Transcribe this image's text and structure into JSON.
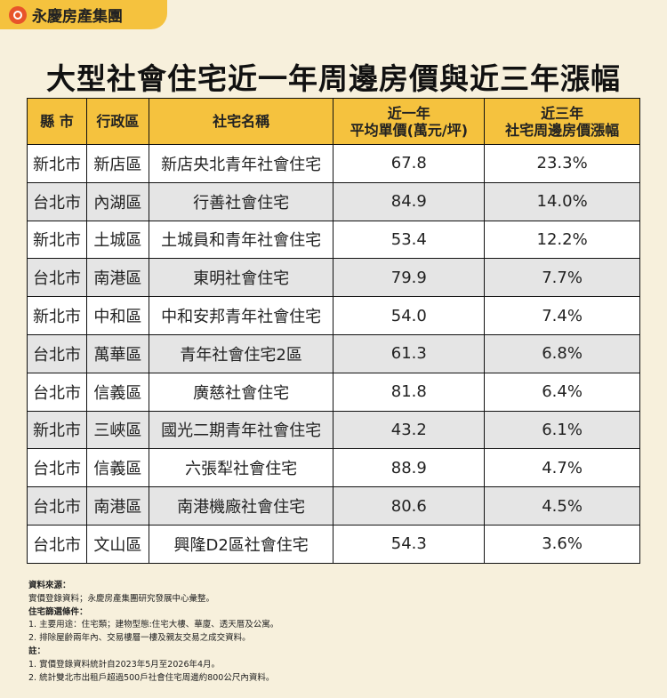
{
  "brand": "永慶房產集團",
  "title": "大型社會住宅近一年周邊房價與近三年漲幅",
  "table": {
    "columns": [
      [
        "縣 市"
      ],
      [
        "行政區"
      ],
      [
        "社宅名稱"
      ],
      [
        "近一年",
        "平均單價(萬元/坪)"
      ],
      [
        "近三年",
        "社宅周邊房價漲幅"
      ]
    ],
    "rows": [
      [
        "新北市",
        "新店區",
        "新店央北青年社會住宅",
        "67.8",
        "23.3%"
      ],
      [
        "台北市",
        "內湖區",
        "行善社會住宅",
        "84.9",
        "14.0%"
      ],
      [
        "新北市",
        "土城區",
        "土城員和青年社會住宅",
        "53.4",
        "12.2%"
      ],
      [
        "台北市",
        "南港區",
        "東明社會住宅",
        "79.9",
        "7.7%"
      ],
      [
        "新北市",
        "中和區",
        "中和安邦青年社會住宅",
        "54.0",
        "7.4%"
      ],
      [
        "台北市",
        "萬華區",
        "青年社會住宅2區",
        "61.3",
        "6.8%"
      ],
      [
        "台北市",
        "信義區",
        "廣慈社會住宅",
        "81.8",
        "6.4%"
      ],
      [
        "新北市",
        "三峽區",
        "國光二期青年社會住宅",
        "43.2",
        "6.1%"
      ],
      [
        "台北市",
        "信義區",
        "六張犁社會住宅",
        "88.9",
        "4.7%"
      ],
      [
        "台北市",
        "南港區",
        "南港機廠社會住宅",
        "80.6",
        "4.5%"
      ],
      [
        "台北市",
        "文山區",
        "興隆D2區社會住宅",
        "54.3",
        "3.6%"
      ]
    ]
  },
  "notes": [
    {
      "heading": "資料來源：",
      "lines": [
        "實價登錄資料；永慶房產集團研究發展中心彙整。"
      ]
    },
    {
      "heading": "住宅篩選條件：",
      "lines": [
        "1. 主要用途：住宅類；建物型態:住宅大樓、華廈、透天厝及公寓。",
        "2. 排除屋齡兩年內、交易樓層一樓及親友交易之成交資料。"
      ]
    },
    {
      "heading": "註：",
      "lines": [
        "1. 實價登錄資料統計自2023年5月至2026年4月。",
        "2. 統計雙北市出租戶超過500戶社會住宅周邊約800公尺內資料。"
      ]
    }
  ]
}
